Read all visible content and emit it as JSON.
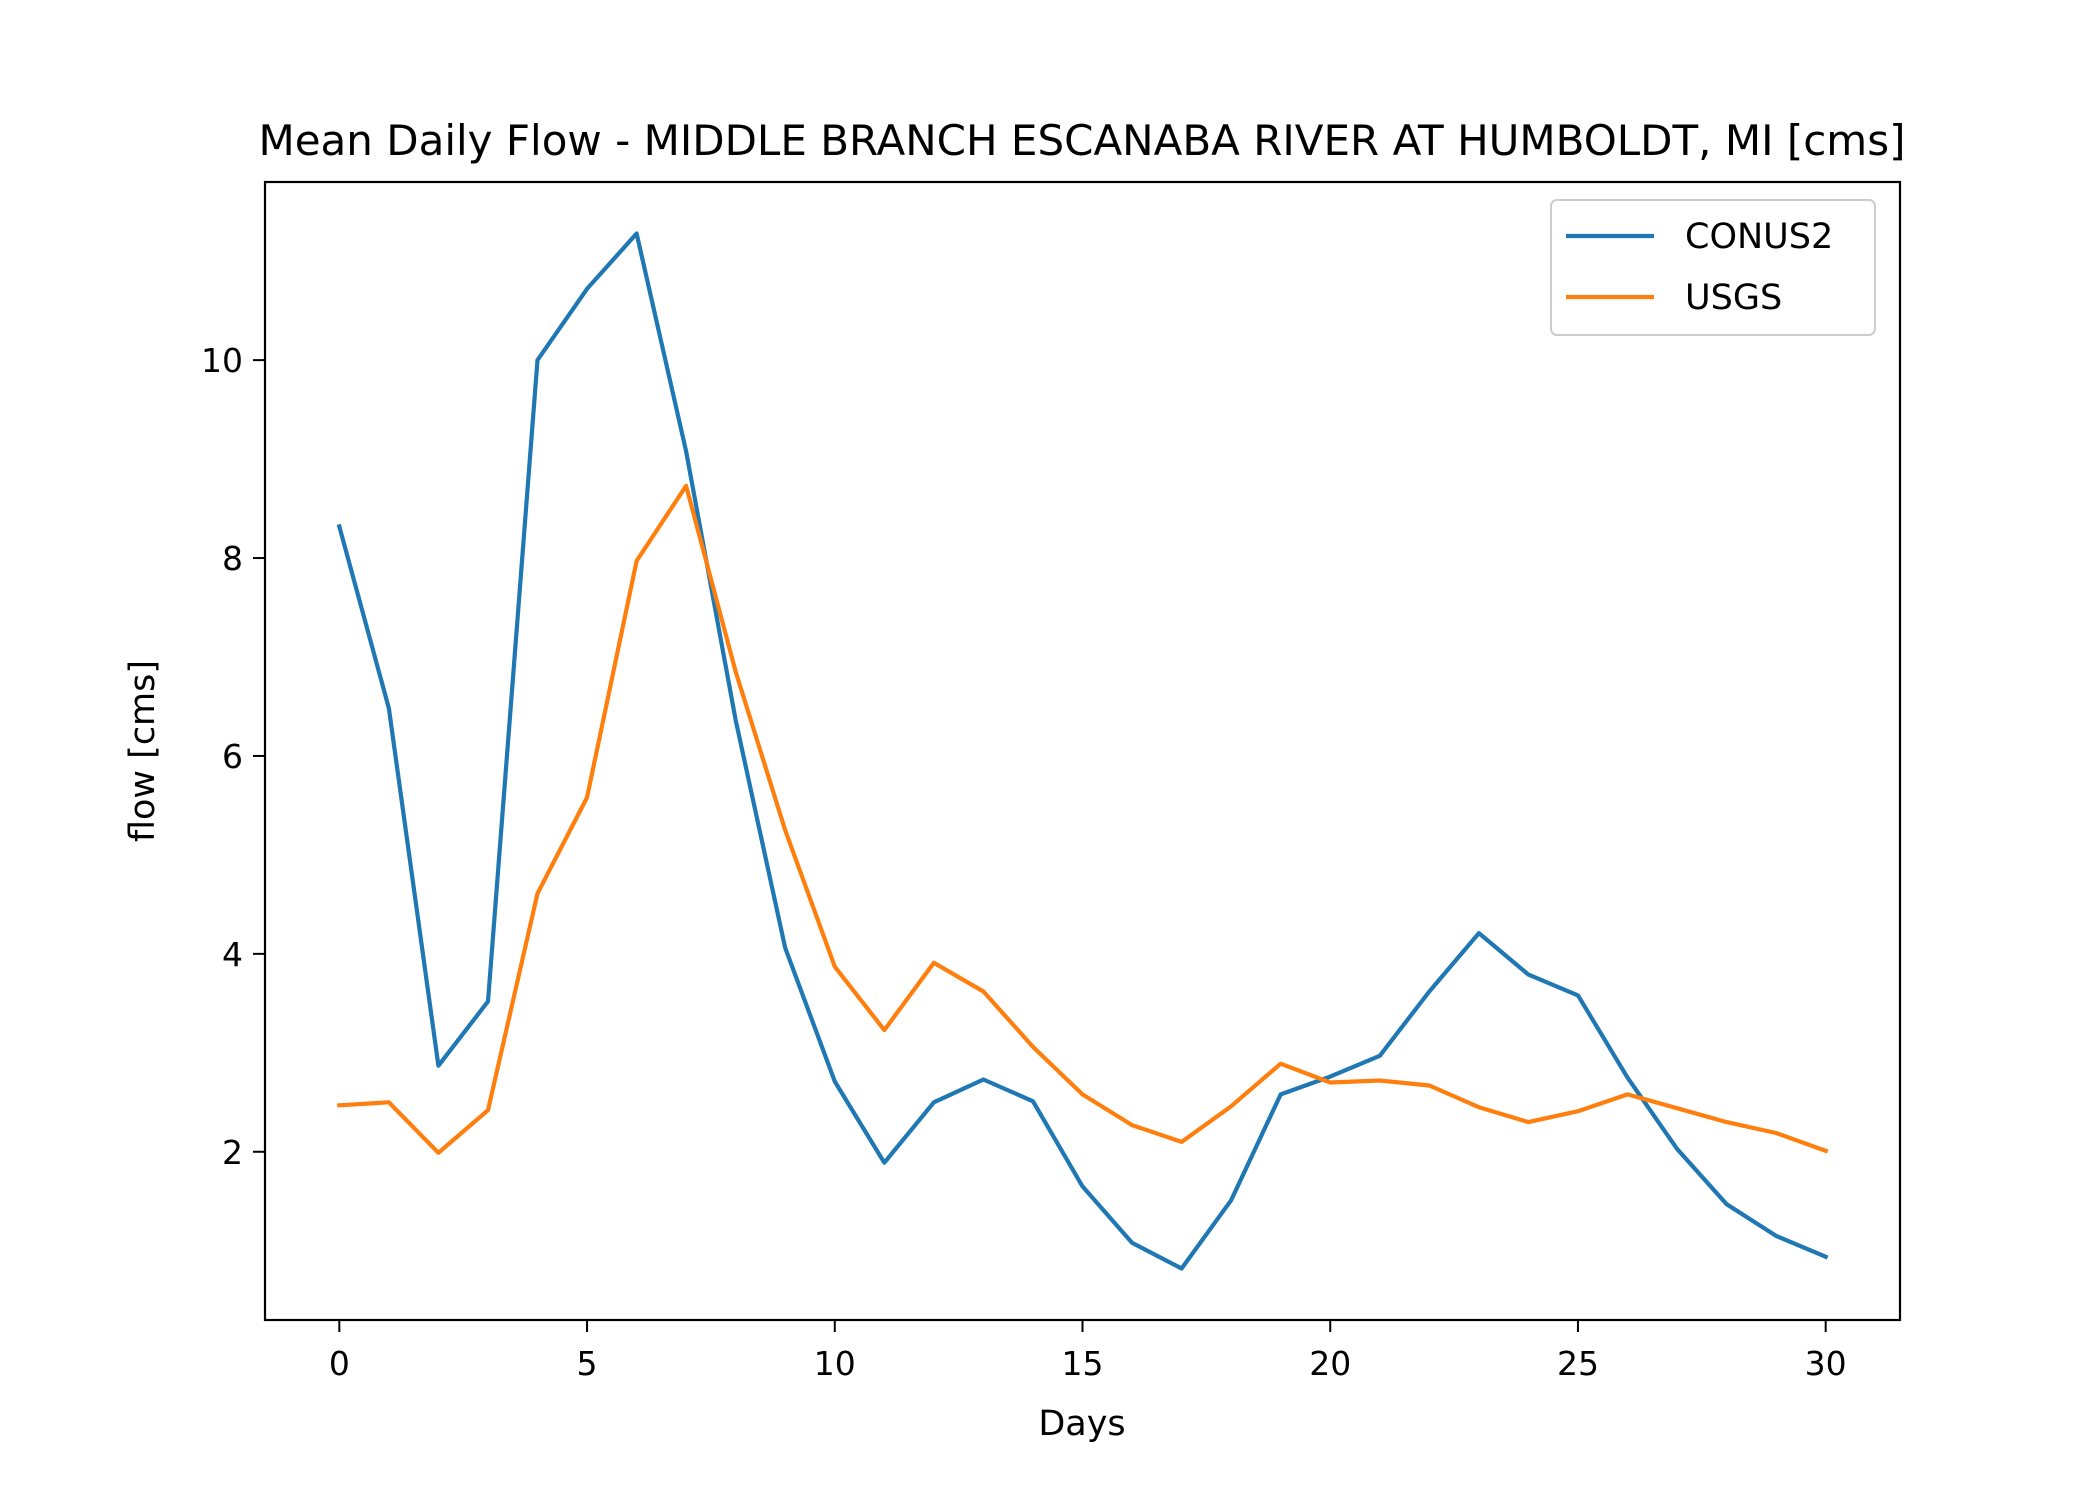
{
  "chart_data": {
    "type": "line",
    "title": "Mean Daily Flow - MIDDLE BRANCH ESCANABA RIVER AT HUMBOLDT, MI [cms]",
    "xlabel": "Days",
    "ylabel": "flow [cms]",
    "xlim": [
      -1.5,
      31.5
    ],
    "ylim": [
      0.3,
      11.8
    ],
    "xticks": [
      0,
      5,
      10,
      15,
      20,
      25,
      30
    ],
    "xtick_labels": [
      "0",
      "5",
      "10",
      "15",
      "20",
      "25",
      "30"
    ],
    "yticks": [
      2,
      4,
      6,
      8,
      10
    ],
    "ytick_labels": [
      "2",
      "4",
      "6",
      "8",
      "10"
    ],
    "grid": false,
    "legend_position": "top-right",
    "x": [
      0,
      1,
      2,
      3,
      4,
      5,
      6,
      7,
      8,
      9,
      10,
      11,
      12,
      13,
      14,
      15,
      16,
      17,
      18,
      19,
      20,
      21,
      22,
      23,
      24,
      25,
      26,
      27,
      28,
      29,
      30
    ],
    "series": [
      {
        "name": "CONUS2",
        "color": "#1f77b4",
        "values": [
          8.32,
          6.48,
          2.87,
          3.52,
          10.0,
          10.72,
          11.28,
          9.08,
          6.36,
          4.06,
          2.71,
          1.89,
          2.5,
          2.73,
          2.51,
          1.65,
          1.08,
          0.82,
          1.51,
          2.58,
          2.76,
          2.97,
          3.62,
          4.21,
          3.79,
          3.58,
          2.75,
          2.03,
          1.47,
          1.15,
          0.94
        ]
      },
      {
        "name": "USGS",
        "color": "#ff7f0e",
        "values": [
          2.47,
          2.5,
          1.99,
          2.42,
          4.61,
          5.58,
          7.97,
          8.73,
          6.85,
          5.25,
          3.87,
          3.23,
          3.91,
          3.62,
          3.06,
          2.58,
          2.27,
          2.1,
          2.46,
          2.89,
          2.7,
          2.72,
          2.67,
          2.45,
          2.3,
          2.41,
          2.58,
          2.44,
          2.3,
          2.19,
          2.01
        ]
      }
    ]
  }
}
